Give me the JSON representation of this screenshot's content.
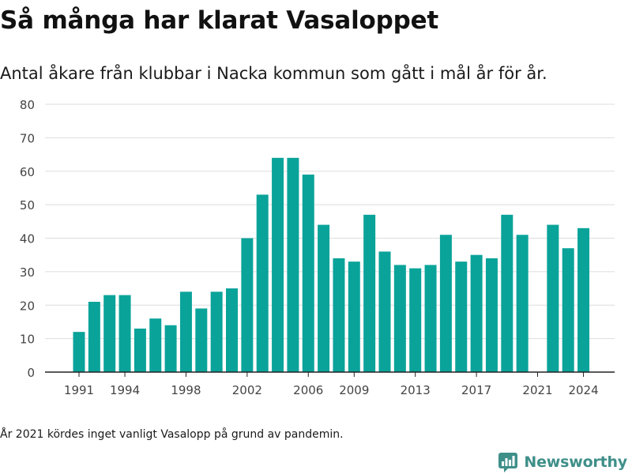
{
  "header": {
    "title": "Så många har klarat Vasaloppet",
    "subtitle": "Antal åkare från klubbar i Nacka kommun som gått i mål år för år."
  },
  "footer": {
    "note": "År 2021 kördes inget vanligt Vasalopp på grund av pandemin.",
    "brand": "Newsworthy"
  },
  "colors": {
    "bar": "#0aa39a",
    "grid": "#dddddd",
    "axis": "#222222",
    "brand": "#3f8f89"
  },
  "chart_data": {
    "type": "bar",
    "title": "Så många har klarat Vasaloppet",
    "subtitle": "Antal åkare från klubbar i Nacka kommun som gått i mål år för år.",
    "xlabel": "",
    "ylabel": "",
    "ylim": [
      0,
      80
    ],
    "yticks": [
      0,
      10,
      20,
      30,
      40,
      50,
      60,
      70,
      80
    ],
    "xticks": [
      "1991",
      "1994",
      "1998",
      "2002",
      "2006",
      "2009",
      "2013",
      "2017",
      "2021",
      "2024"
    ],
    "grid": true,
    "categories": [
      1991,
      1992,
      1993,
      1994,
      1995,
      1996,
      1997,
      1998,
      1999,
      2000,
      2001,
      2002,
      2003,
      2004,
      2005,
      2006,
      2007,
      2008,
      2009,
      2010,
      2011,
      2012,
      2013,
      2014,
      2015,
      2016,
      2017,
      2018,
      2019,
      2020,
      2021,
      2022,
      2023,
      2024
    ],
    "values": [
      12,
      21,
      23,
      23,
      13,
      16,
      14,
      24,
      19,
      24,
      25,
      40,
      53,
      64,
      64,
      59,
      44,
      34,
      33,
      47,
      36,
      32,
      31,
      32,
      41,
      33,
      35,
      34,
      47,
      41,
      null,
      44,
      37,
      43
    ]
  }
}
